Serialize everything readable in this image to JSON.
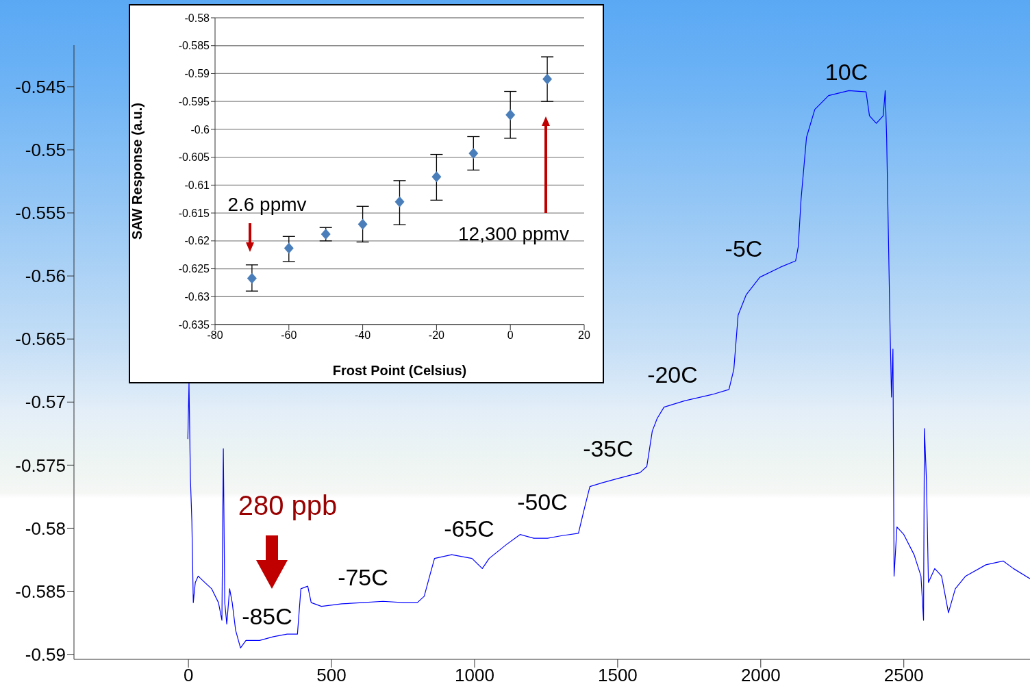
{
  "chart_data": [
    {
      "type": "line",
      "xlim": [
        -400,
        2941
      ],
      "xticks": [
        0,
        500,
        1000,
        1500,
        2000,
        2500
      ],
      "ylim": [
        -0.5904,
        -0.5417
      ],
      "yticks": [
        -0.59,
        -0.585,
        -0.58,
        -0.575,
        -0.57,
        -0.565,
        -0.56,
        -0.555,
        -0.55,
        -0.545
      ],
      "line_style": "solid",
      "x": [
        -2,
        2,
        7,
        12,
        17,
        24,
        34,
        57,
        81,
        105,
        117,
        122,
        127,
        134,
        144,
        153,
        165,
        182,
        201,
        249,
        297,
        345,
        381,
        393,
        417,
        429,
        465,
        536,
        608,
        680,
        752,
        800,
        824,
        843,
        860,
        920,
        991,
        1027,
        1051,
        1111,
        1159,
        1207,
        1255,
        1303,
        1363,
        1382,
        1403,
        1446,
        1494,
        1578,
        1602,
        1621,
        1638,
        1662,
        1734,
        1830,
        1889,
        1906,
        1921,
        1949,
        1997,
        2069,
        2122,
        2131,
        2141,
        2160,
        2189,
        2237,
        2308,
        2368,
        2380,
        2404,
        2428,
        2435,
        2440,
        2452,
        2457,
        2462,
        2466,
        2476,
        2500,
        2536,
        2560,
        2569,
        2572,
        2579,
        2586,
        2608,
        2632,
        2656,
        2680,
        2716,
        2787,
        2847,
        2883,
        2941
      ],
      "series": [
        {
          "color": "#0000ff",
          "values": [
            -0.5729,
            -0.5685,
            -0.5761,
            -0.5794,
            -0.5859,
            -0.5843,
            -0.5838,
            -0.5843,
            -0.5848,
            -0.5859,
            -0.5873,
            -0.5737,
            -0.5859,
            -0.5876,
            -0.5848,
            -0.5859,
            -0.5881,
            -0.5895,
            -0.5889,
            -0.5889,
            -0.5886,
            -0.5884,
            -0.5884,
            -0.5848,
            -0.5846,
            -0.5859,
            -0.5862,
            -0.586,
            -0.5859,
            -0.5858,
            -0.5859,
            -0.5859,
            -0.5854,
            -0.5838,
            -0.5824,
            -0.5821,
            -0.5824,
            -0.5832,
            -0.5824,
            -0.5813,
            -0.5805,
            -0.5808,
            -0.5808,
            -0.5806,
            -0.5804,
            -0.5786,
            -0.5767,
            -0.5764,
            -0.5761,
            -0.5756,
            -0.5751,
            -0.5723,
            -0.5713,
            -0.5704,
            -0.5699,
            -0.5694,
            -0.569,
            -0.5674,
            -0.5631,
            -0.5615,
            -0.5601,
            -0.5593,
            -0.5588,
            -0.5577,
            -0.5539,
            -0.549,
            -0.5468,
            -0.5457,
            -0.5453,
            -0.5454,
            -0.5473,
            -0.5479,
            -0.5473,
            -0.5453,
            -0.549,
            -0.5642,
            -0.5696,
            -0.5658,
            -0.5838,
            -0.5799,
            -0.5805,
            -0.5821,
            -0.5838,
            -0.5873,
            -0.5721,
            -0.5761,
            -0.5843,
            -0.5832,
            -0.5838,
            -0.5867,
            -0.5848,
            -0.5838,
            -0.5829,
            -0.5826,
            -0.5832,
            -0.584
          ]
        }
      ],
      "annotations": [
        "280 ppb",
        "-85C",
        "-75C",
        "-65C",
        "-50C",
        "-35C",
        "-20C",
        "-5C",
        "10C"
      ]
    },
    {
      "type": "scatter",
      "xlabel": "Frost Point (Celsius)",
      "ylabel": "SAW Response (a.u.)",
      "xlim": [
        -80,
        20
      ],
      "xticks": [
        -80,
        -60,
        -40,
        -20,
        0,
        20
      ],
      "ylim": [
        -0.635,
        -0.58
      ],
      "yticks": [
        -0.635,
        -0.63,
        -0.625,
        -0.62,
        -0.615,
        -0.61,
        -0.605,
        -0.6,
        -0.595,
        -0.59,
        -0.585,
        -0.58
      ],
      "grid": "y",
      "marker": "diamond",
      "x": [
        -70,
        -60,
        -50,
        -40,
        -30,
        -20,
        -10,
        0,
        10
      ],
      "series": [
        {
          "color": "#4a7ebb",
          "values": [
            -0.6267,
            -0.6213,
            -0.6188,
            -0.617,
            -0.613,
            -0.6085,
            -0.6043,
            -0.5974,
            -0.591
          ],
          "errors": [
            [
              -0.629,
              -0.6243
            ],
            [
              -0.6237,
              -0.6192
            ],
            [
              -0.62,
              -0.6176
            ],
            [
              -0.6202,
              -0.6138
            ],
            [
              -0.6171,
              -0.6092
            ],
            [
              -0.6127,
              -0.6045
            ],
            [
              -0.6073,
              -0.6013
            ],
            [
              -0.6016,
              -0.5932
            ],
            [
              -0.595,
              -0.587
            ]
          ]
        }
      ],
      "annotations": [
        "2.6 ppmv",
        "12,300 ppmv"
      ]
    }
  ]
}
